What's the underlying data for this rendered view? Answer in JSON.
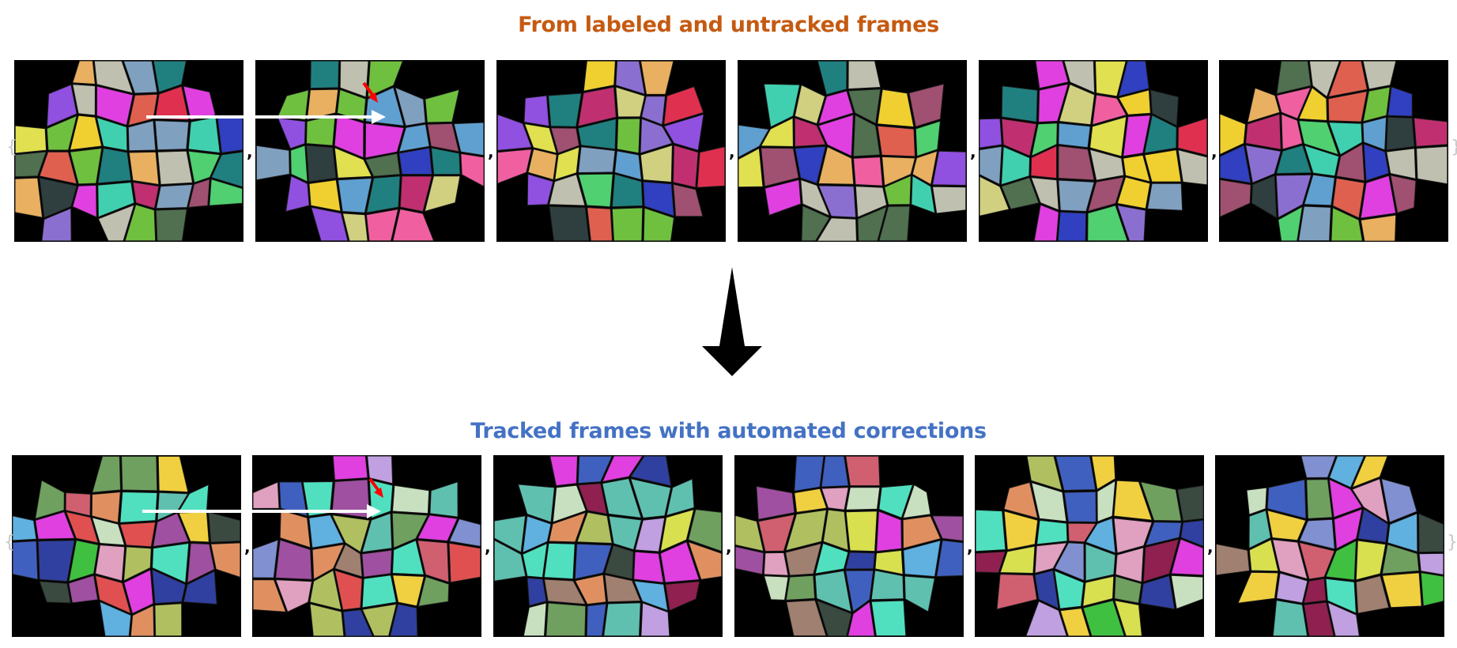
{
  "titles": {
    "top": "From labeled and untracked frames",
    "bottom": "Tracked frames with automated corrections"
  },
  "colors": {
    "top_title": "#c55a11",
    "bottom_title": "#4472c4",
    "frame_background": "#000000",
    "tracking_arrow": "#ffffff",
    "correction_marker": "#ff0000",
    "flow_arrow": "#000000"
  },
  "separator": ",",
  "rows": [
    {
      "name": "untracked",
      "frame_count": 6,
      "palette": [
        "#e040e0",
        "#c0c0b0",
        "#8b6fd0",
        "#40d0b0",
        "#e8b060",
        "#e0e050",
        "#a05070",
        "#2f3f3f",
        "#e06050",
        "#3040c0",
        "#50d070",
        "#e03050",
        "#f0d030",
        "#60a0d0",
        "#d0d080",
        "#80a0c0",
        "#507050",
        "#c03070",
        "#70c040",
        "#9050e0",
        "#208080",
        "#f060a0"
      ]
    },
    {
      "name": "tracked",
      "frame_count": 6,
      "palette": [
        "#d8e050",
        "#a050a0",
        "#50e0c0",
        "#e09060",
        "#c8e0c0",
        "#e040e0",
        "#902050",
        "#3a4a40",
        "#d06070",
        "#3040a0",
        "#40c040",
        "#f0d040",
        "#60b0e0",
        "#8090d0",
        "#b0c060",
        "#a08070",
        "#e05050",
        "#60c0b0",
        "#c0a0e0",
        "#70a060",
        "#4060c0",
        "#e0a0c0"
      ]
    }
  ]
}
